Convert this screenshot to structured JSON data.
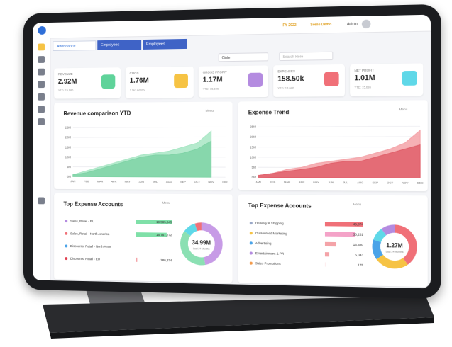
{
  "header": {
    "fiscal_year": "FY 2022",
    "company": "Some Demo",
    "user": "Admin"
  },
  "tabs": [
    "Attendance",
    "Employees",
    "Employees"
  ],
  "filters": {
    "select": "Cinfe",
    "search_placeholder": "Search Here"
  },
  "kpis": [
    {
      "label": "REVENUE",
      "value": "2.92M",
      "sub": "YTD: 15,686",
      "color": "#5fd39a"
    },
    {
      "label": "COGS",
      "value": "1.76M",
      "sub": "YTD: 15,686",
      "color": "#f6c344"
    },
    {
      "label": "GROSS PROFIT",
      "value": "1.17M",
      "sub": "YTD: 15,686",
      "color": "#b48be0"
    },
    {
      "label": "EXPENSES",
      "value": "158.50k",
      "sub": "YTD: 15,686",
      "color": "#f07078"
    },
    {
      "label": "NET PROFIT",
      "value": "1.01M",
      "sub": "YTD: 15,686",
      "color": "#5fd8e8"
    }
  ],
  "charts": [
    {
      "type": "area",
      "title": "Revenue comparison YTD",
      "menu": "Menu",
      "categories": [
        "JAN",
        "FEB",
        "MAR",
        "APR",
        "MAY",
        "JUN",
        "JUL",
        "AUG",
        "SEP",
        "OCT",
        "NOV",
        "DEC"
      ],
      "series": [
        {
          "color": "#a8e6c4",
          "values": [
            1,
            3,
            5,
            7,
            9,
            11,
            12,
            13,
            15,
            17,
            23,
            null
          ]
        },
        {
          "color": "#7fd3a6",
          "values": [
            1,
            2,
            4,
            6,
            8,
            10,
            11,
            11,
            12,
            14,
            18,
            null
          ]
        }
      ],
      "ylim": [
        0,
        27
      ],
      "yticks": [
        {
          "value": 0,
          "label": "0M"
        },
        {
          "value": 5,
          "label": "5M"
        },
        {
          "value": 10,
          "label": "10M"
        },
        {
          "value": 15,
          "label": "15M"
        },
        {
          "value": 20,
          "label": "20M"
        },
        {
          "value": 25,
          "label": "25M"
        }
      ]
    },
    {
      "type": "area",
      "title": "Expense Trend",
      "menu": "Menu",
      "categories": [
        "JAN",
        "FEB",
        "MAR",
        "APR",
        "MAY",
        "JUN",
        "JUL",
        "AUG",
        "SEP",
        "OCT",
        "NOV",
        "DEC"
      ],
      "series": [
        {
          "color": "#f4a3a8",
          "values": [
            1,
            2,
            4,
            5,
            7,
            8,
            9,
            10,
            12,
            14,
            17,
            23
          ]
        },
        {
          "color": "#e0606b",
          "values": [
            1,
            2,
            3,
            4,
            5,
            7,
            8,
            8,
            10,
            12,
            14,
            16
          ]
        }
      ],
      "ylim": [
        0,
        27
      ],
      "yticks": [
        {
          "value": 0,
          "label": "0M"
        },
        {
          "value": 5,
          "label": "5M"
        },
        {
          "value": 10,
          "label": "10M"
        },
        {
          "value": 15,
          "label": "15M"
        },
        {
          "value": 20,
          "label": "20M"
        },
        {
          "value": 25,
          "label": "25M"
        }
      ]
    }
  ],
  "accounts": [
    {
      "title": "Top Expense Accounts",
      "menu": "Menu",
      "rows": [
        {
          "label": "Sales, Retail - EU",
          "value": 19585645,
          "value_label": "19,585,645",
          "color": "#b48be0",
          "bar": "#7fe0a8"
        },
        {
          "label": "Sales, Retail - North America",
          "value": 16757272,
          "value_label": "16,757,272",
          "color": "#f07078",
          "bar": "#7fe0a8"
        },
        {
          "label": "Discounts, Retail - North Amer",
          "value": null,
          "value_label": null,
          "color": "#4aa3e8",
          "bar": "#f4a3a8"
        },
        {
          "label": "Discounts, Retail - EU",
          "value": -780374,
          "value_label": "-780,374",
          "color": "#e04050",
          "bar": "#f4a3a8"
        }
      ],
      "donut": {
        "total": "34.99M",
        "caption": "Last 24 Months",
        "segments": [
          {
            "color": "#c79be6",
            "value": 47
          },
          {
            "color": "#8be0b3",
            "value": 38
          },
          {
            "color": "#5fd8e8",
            "value": 10
          },
          {
            "color": "#f07078",
            "value": 5
          }
        ]
      }
    },
    {
      "title": "Top Expense Accounts",
      "menu": "Menu",
      "rows": [
        {
          "label": "Delivery & Shipping",
          "value": 45874,
          "value_label": "45,874",
          "color": "#9aa8c8",
          "bar": "#f07078"
        },
        {
          "label": "Outsourced Marketing",
          "value": 36231,
          "value_label": "36,231",
          "color": "#f6c344",
          "bar": "#f4a3c8"
        },
        {
          "label": "Advertising",
          "value": 13680,
          "value_label": "13,680",
          "color": "#4aa3e8",
          "bar": "#f4a3a8"
        },
        {
          "label": "Entertainment & PR",
          "value": 5043,
          "value_label": "5,043",
          "color": "#b48be0",
          "bar": "#f4a3a8"
        },
        {
          "label": "Sales Promotions",
          "value": 175,
          "value_label": "175",
          "color": "#f39a4a",
          "bar": "#f4a3a8"
        }
      ],
      "donut": {
        "total": "1.27M",
        "caption": "Last 24 Months",
        "segments": [
          {
            "color": "#f07078",
            "value": 40
          },
          {
            "color": "#f6c344",
            "value": 25
          },
          {
            "color": "#4aa3e8",
            "value": 15
          },
          {
            "color": "#5fd8e8",
            "value": 10
          },
          {
            "color": "#b48be0",
            "value": 10
          }
        ]
      }
    }
  ]
}
